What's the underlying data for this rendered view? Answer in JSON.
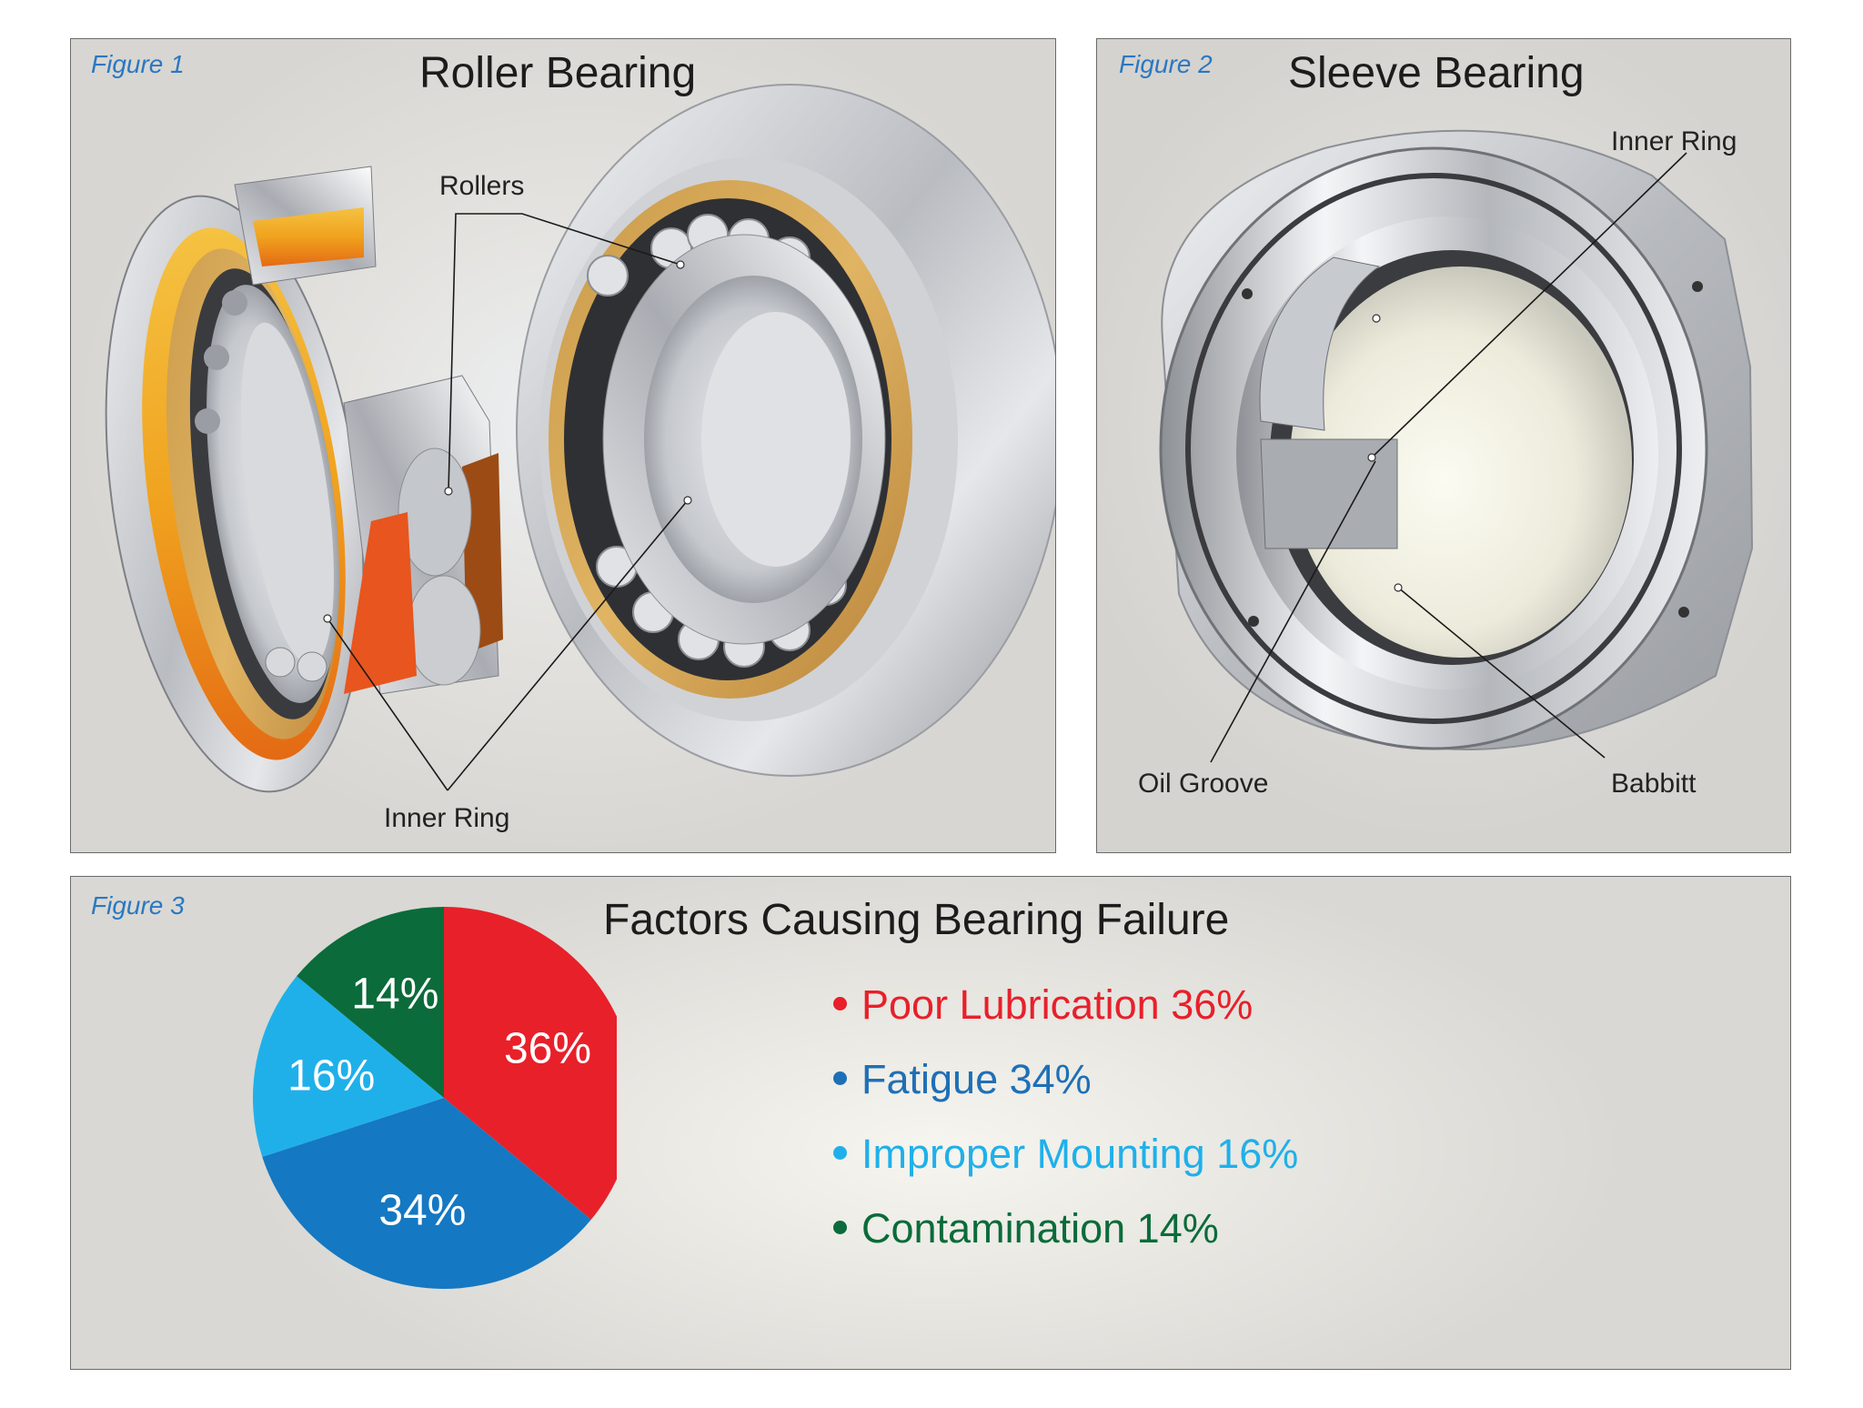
{
  "figure1": {
    "label": "Figure 1",
    "title": "Roller Bearing",
    "callouts": {
      "rollers": "Rollers",
      "inner_ring": "Inner Ring"
    }
  },
  "figure2": {
    "label": "Figure 2",
    "title": "Sleeve Bearing",
    "callouts": {
      "inner_ring": "Inner Ring",
      "oil_groove": "Oil Groove",
      "babbitt": "Babbitt"
    }
  },
  "figure3": {
    "label": "Figure 3",
    "title": "Factors Causing Bearing Failure"
  },
  "chart_data": {
    "type": "pie",
    "title": "Factors Causing Bearing Failure",
    "legend_placement": "right",
    "slices": [
      {
        "name": "Poor Lubrication",
        "value": 36,
        "label": "36%",
        "legend": "Poor Lubrication 36%",
        "color": "#e8202a",
        "legend_color": "#e8202a"
      },
      {
        "name": "Fatigue",
        "value": 34,
        "label": "34%",
        "legend": "Fatigue 34%",
        "color": "#1578c2",
        "legend_color": "#1f6fb6"
      },
      {
        "name": "Improper Mounting",
        "value": 16,
        "label": "16%",
        "legend": "Improper Mounting 16%",
        "color": "#1fb0ea",
        "legend_color": "#1fb0ea"
      },
      {
        "name": "Contamination",
        "value": 14,
        "label": "14%",
        "legend": "Contamination 14%",
        "color": "#0b6b3a",
        "legend_color": "#0b6b3a"
      }
    ]
  }
}
